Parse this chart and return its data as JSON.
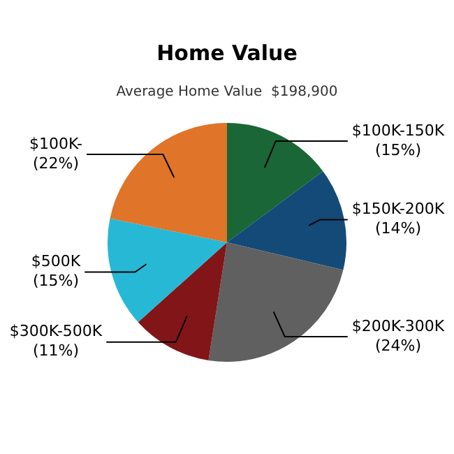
{
  "chart_data": {
    "type": "pie",
    "title": "Home Value",
    "subtitle": "Average Home Value  $198,900",
    "categories": [
      "$100K-150K",
      "$150K-200K",
      "$200K-300K",
      "$300K-500K",
      "$500K",
      "$100K-"
    ],
    "values": [
      15,
      14,
      24,
      11,
      15,
      22
    ],
    "value_labels": [
      "(15%)",
      "(14%)",
      "(24%)",
      "(11%)",
      "(15%)",
      "(22%)"
    ],
    "colors": [
      "#1a6636",
      "#134a78",
      "#606060",
      "#821518",
      "#27b8d6",
      "#e07428"
    ],
    "legend": false
  }
}
